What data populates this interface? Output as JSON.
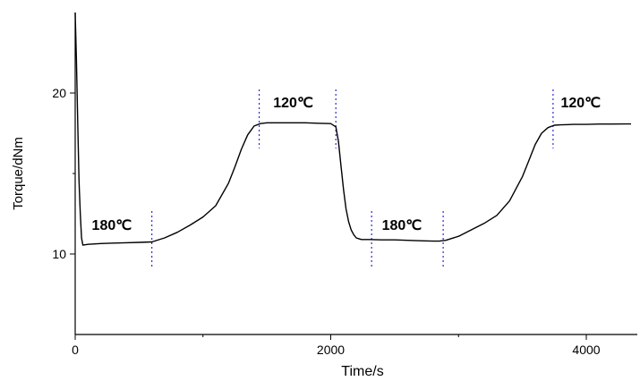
{
  "chart_data": {
    "type": "line",
    "xlabel": "Time/s",
    "ylabel": "Torque/dNm",
    "xlim": [
      0,
      4400
    ],
    "ylim": [
      5,
      25
    ],
    "x_ticks": [
      0,
      2000,
      4000
    ],
    "x_tick_labels": [
      "0",
      "2000",
      "4000"
    ],
    "y_ticks": [
      10,
      20
    ],
    "y_tick_labels": [
      "10",
      "20"
    ],
    "grid": false,
    "series": [
      {
        "color": "#000000",
        "x": [
          0,
          10,
          20,
          30,
          40,
          50,
          60,
          100,
          200,
          300,
          400,
          500,
          600,
          700,
          800,
          900,
          1000,
          1100,
          1200,
          1250,
          1300,
          1350,
          1400,
          1450,
          1500,
          1600,
          1700,
          1800,
          1900,
          2000,
          2040,
          2060,
          2080,
          2100,
          2120,
          2140,
          2160,
          2180,
          2200,
          2220,
          2240,
          2260,
          2280,
          2300,
          2400,
          2500,
          2600,
          2700,
          2800,
          2850,
          2900,
          3000,
          3100,
          3200,
          3300,
          3400,
          3500,
          3550,
          3600,
          3650,
          3700,
          3750,
          3800,
          3900,
          4000,
          4100,
          4200,
          4300,
          4350
        ],
        "y": [
          25.0,
          22.0,
          18.0,
          14.5,
          12.5,
          11.0,
          10.55,
          10.6,
          10.65,
          10.68,
          10.7,
          10.72,
          10.75,
          11.0,
          11.35,
          11.8,
          12.3,
          13.0,
          14.4,
          15.4,
          16.5,
          17.4,
          17.95,
          18.1,
          18.15,
          18.15,
          18.15,
          18.15,
          18.12,
          18.1,
          17.9,
          17.0,
          15.5,
          14.0,
          12.8,
          12.0,
          11.5,
          11.2,
          11.0,
          10.95,
          10.9,
          10.9,
          10.9,
          10.9,
          10.88,
          10.88,
          10.85,
          10.82,
          10.8,
          10.8,
          10.85,
          11.1,
          11.5,
          11.9,
          12.4,
          13.3,
          14.8,
          15.8,
          16.8,
          17.5,
          17.85,
          18.0,
          18.02,
          18.05,
          18.05,
          18.07,
          18.07,
          18.08,
          18.08
        ]
      }
    ],
    "markers": {
      "color": "#2b2bd6",
      "x": [
        600,
        1440,
        2040,
        2320,
        2880,
        3740
      ]
    },
    "annotations": [
      {
        "text": "180℃",
        "x": 130,
        "y": 11.5
      },
      {
        "text": "120℃",
        "x": 1550,
        "y": 19.1
      },
      {
        "text": "180℃",
        "x": 2400,
        "y": 11.5
      },
      {
        "text": "120℃",
        "x": 3800,
        "y": 19.1
      }
    ]
  }
}
